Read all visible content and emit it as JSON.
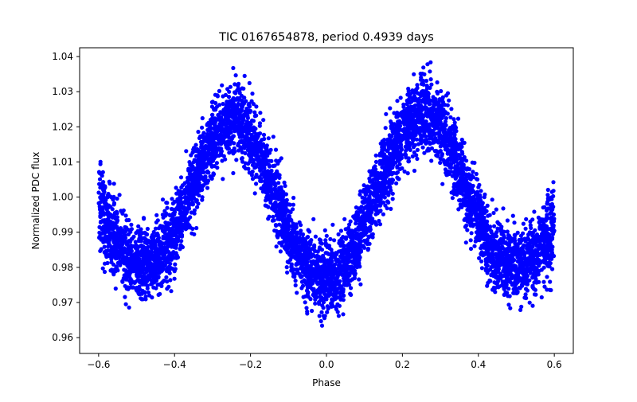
{
  "chart_data": {
    "type": "scatter",
    "title": "TIC 0167654878, period 0.4939 days",
    "xlabel": "Phase",
    "ylabel": "Normalized PDC flux",
    "xlim": [
      -0.65,
      0.65
    ],
    "ylim": [
      0.9555,
      1.0425
    ],
    "x_ticks": [
      -0.6,
      -0.4,
      -0.2,
      0.0,
      0.2,
      0.4,
      0.6
    ],
    "x_tick_labels": [
      "−0.6",
      "−0.4",
      "−0.2",
      "0.0",
      "0.2",
      "0.4",
      "0.6"
    ],
    "y_ticks": [
      0.96,
      0.97,
      0.98,
      0.99,
      1.0,
      1.01,
      1.02,
      1.03,
      1.04
    ],
    "y_tick_labels": [
      "0.96",
      "0.97",
      "0.98",
      "0.99",
      "1.00",
      "1.01",
      "1.02",
      "1.03",
      "1.04"
    ],
    "grid": false,
    "marker_color": "#0000ff",
    "series": [
      {
        "x": [
          -0.6,
          -0.575,
          -0.55,
          -0.525,
          -0.5,
          -0.475,
          -0.45,
          -0.425,
          -0.4,
          -0.375,
          -0.35,
          -0.325,
          -0.3,
          -0.275,
          -0.25,
          -0.225,
          -0.2,
          -0.175,
          -0.15,
          -0.125,
          -0.1,
          -0.075,
          -0.05,
          -0.025,
          0.0,
          0.025,
          0.05,
          0.075,
          0.1,
          0.125,
          0.15,
          0.175,
          0.2,
          0.225,
          0.25,
          0.275,
          0.3,
          0.325,
          0.35,
          0.375,
          0.4,
          0.425,
          0.45,
          0.475,
          0.5,
          0.525,
          0.55,
          0.575,
          0.6
        ],
        "y": [
          0.999,
          0.991,
          0.986,
          0.984,
          0.982,
          0.981,
          0.982,
          0.985,
          0.99,
          0.997,
          1.004,
          1.011,
          1.016,
          1.02,
          1.022,
          1.021,
          1.017,
          1.012,
          1.005,
          0.998,
          0.99,
          0.984,
          0.98,
          0.978,
          0.977,
          0.978,
          0.981,
          0.986,
          0.993,
          1.0,
          1.007,
          1.013,
          1.018,
          1.022,
          1.024,
          1.023,
          1.02,
          1.014,
          1.007,
          1.0,
          0.993,
          0.987,
          0.983,
          0.981,
          0.98,
          0.981,
          0.984,
          0.988,
          0.992
        ],
        "spread": [
          0.013,
          0.014,
          0.012,
          0.012,
          0.012,
          0.012,
          0.012,
          0.012,
          0.012,
          0.012,
          0.012,
          0.012,
          0.012,
          0.012,
          0.012,
          0.012,
          0.012,
          0.012,
          0.012,
          0.012,
          0.012,
          0.012,
          0.012,
          0.012,
          0.012,
          0.012,
          0.012,
          0.012,
          0.012,
          0.012,
          0.012,
          0.012,
          0.012,
          0.012,
          0.013,
          0.013,
          0.012,
          0.012,
          0.012,
          0.012,
          0.012,
          0.012,
          0.012,
          0.012,
          0.012,
          0.012,
          0.012,
          0.013,
          0.014
        ]
      }
    ]
  }
}
